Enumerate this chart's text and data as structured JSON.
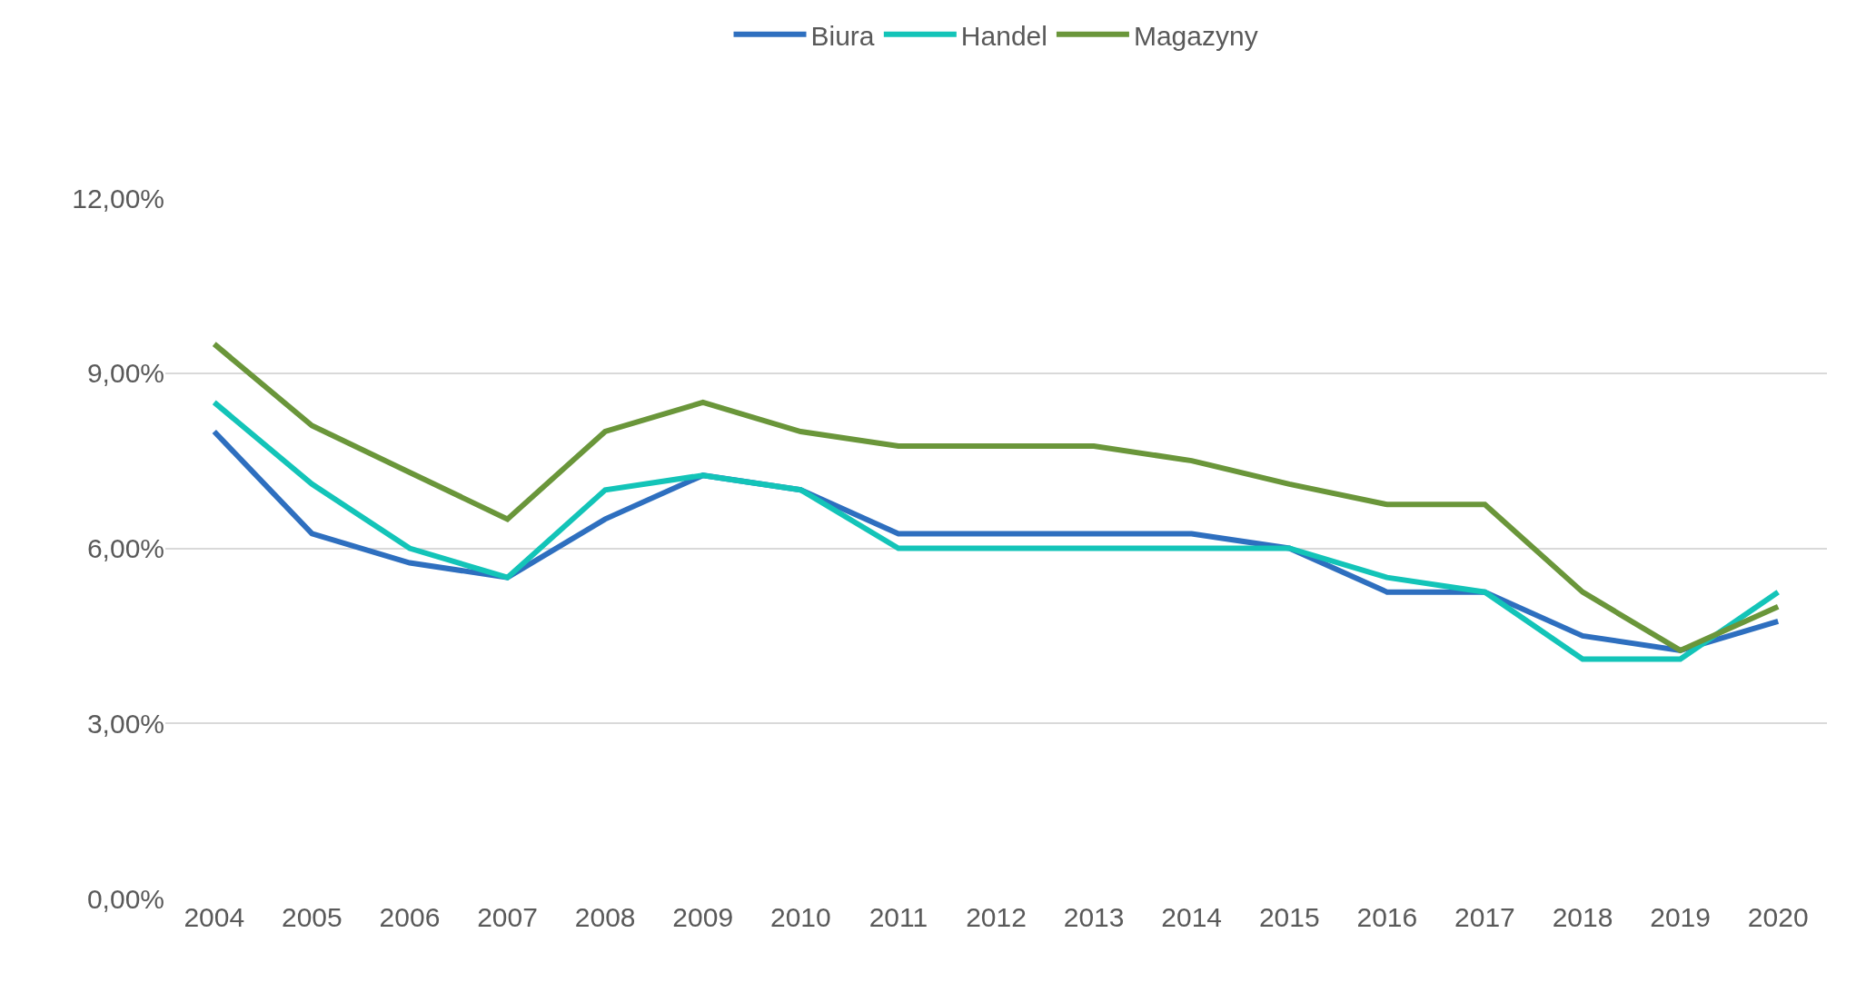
{
  "chart_data": {
    "type": "line",
    "categories": [
      "2004",
      "2005",
      "2006",
      "2007",
      "2008",
      "2009",
      "2010",
      "2011",
      "2012",
      "2013",
      "2014",
      "2015",
      "2016",
      "2017",
      "2018",
      "2019",
      "2020"
    ],
    "series": [
      {
        "name": "Biura",
        "color": "#2e6fbf",
        "values": [
          8.0,
          6.25,
          5.75,
          5.5,
          6.5,
          7.25,
          7.0,
          6.25,
          6.25,
          6.25,
          6.25,
          6.0,
          5.25,
          5.25,
          4.5,
          4.25,
          4.75
        ]
      },
      {
        "name": "Handel",
        "color": "#13c4b8",
        "values": [
          8.5,
          7.1,
          6.0,
          5.5,
          7.0,
          7.25,
          7.0,
          6.0,
          6.0,
          6.0,
          6.0,
          6.0,
          5.5,
          5.25,
          4.1,
          4.1,
          5.25
        ]
      },
      {
        "name": "Magazyny",
        "color": "#6a963a",
        "values": [
          9.5,
          8.1,
          7.3,
          6.5,
          8.0,
          8.5,
          8.0,
          7.75,
          7.75,
          7.75,
          7.5,
          7.1,
          6.75,
          6.75,
          5.25,
          4.25,
          5.0
        ]
      }
    ],
    "ylim": [
      0,
      12
    ],
    "yticks": [
      {
        "value": 0,
        "label": "0,00%"
      },
      {
        "value": 3,
        "label": "3,00%"
      },
      {
        "value": 6,
        "label": "6,00%"
      },
      {
        "value": 9,
        "label": "9,00%"
      },
      {
        "value": 12,
        "label": "12,00%"
      }
    ],
    "grid": "y",
    "legend": "top",
    "marker": "none",
    "line_style": "solid"
  }
}
